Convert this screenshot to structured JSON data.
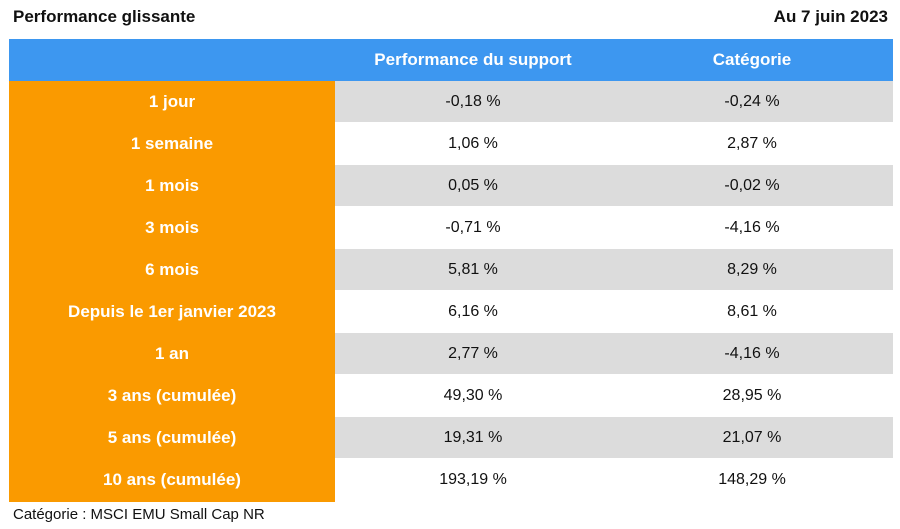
{
  "header": {
    "title": "Performance glissante",
    "date": "Au 7 juin 2023"
  },
  "table": {
    "columns": [
      "",
      "Performance du support",
      "Catégorie"
    ],
    "rows": [
      {
        "label": "1 jour",
        "support": "-0,18 %",
        "categorie": "-0,24 %"
      },
      {
        "label": "1 semaine",
        "support": "1,06 %",
        "categorie": "2,87 %"
      },
      {
        "label": "1 mois",
        "support": "0,05 %",
        "categorie": "-0,02 %"
      },
      {
        "label": "3 mois",
        "support": "-0,71 %",
        "categorie": "-4,16 %"
      },
      {
        "label": "6 mois",
        "support": "5,81 %",
        "categorie": "8,29 %"
      },
      {
        "label": "Depuis le 1er janvier 2023",
        "support": "6,16 %",
        "categorie": "8,61 %"
      },
      {
        "label": "1 an",
        "support": "2,77 %",
        "categorie": "-4,16 %"
      },
      {
        "label": "3 ans (cumulée)",
        "support": "49,30 %",
        "categorie": "28,95 %"
      },
      {
        "label": "5 ans (cumulée)",
        "support": "19,31 %",
        "categorie": "21,07 %"
      },
      {
        "label": "10 ans (cumulée)",
        "support": "193,19 %",
        "categorie": "148,29 %"
      }
    ]
  },
  "footnote": "Catégorie : MSCI EMU Small Cap NR",
  "colors": {
    "header_blue": "#3d97f0",
    "label_orange": "#fa9a00",
    "row_shade": "#dcdcdc"
  }
}
